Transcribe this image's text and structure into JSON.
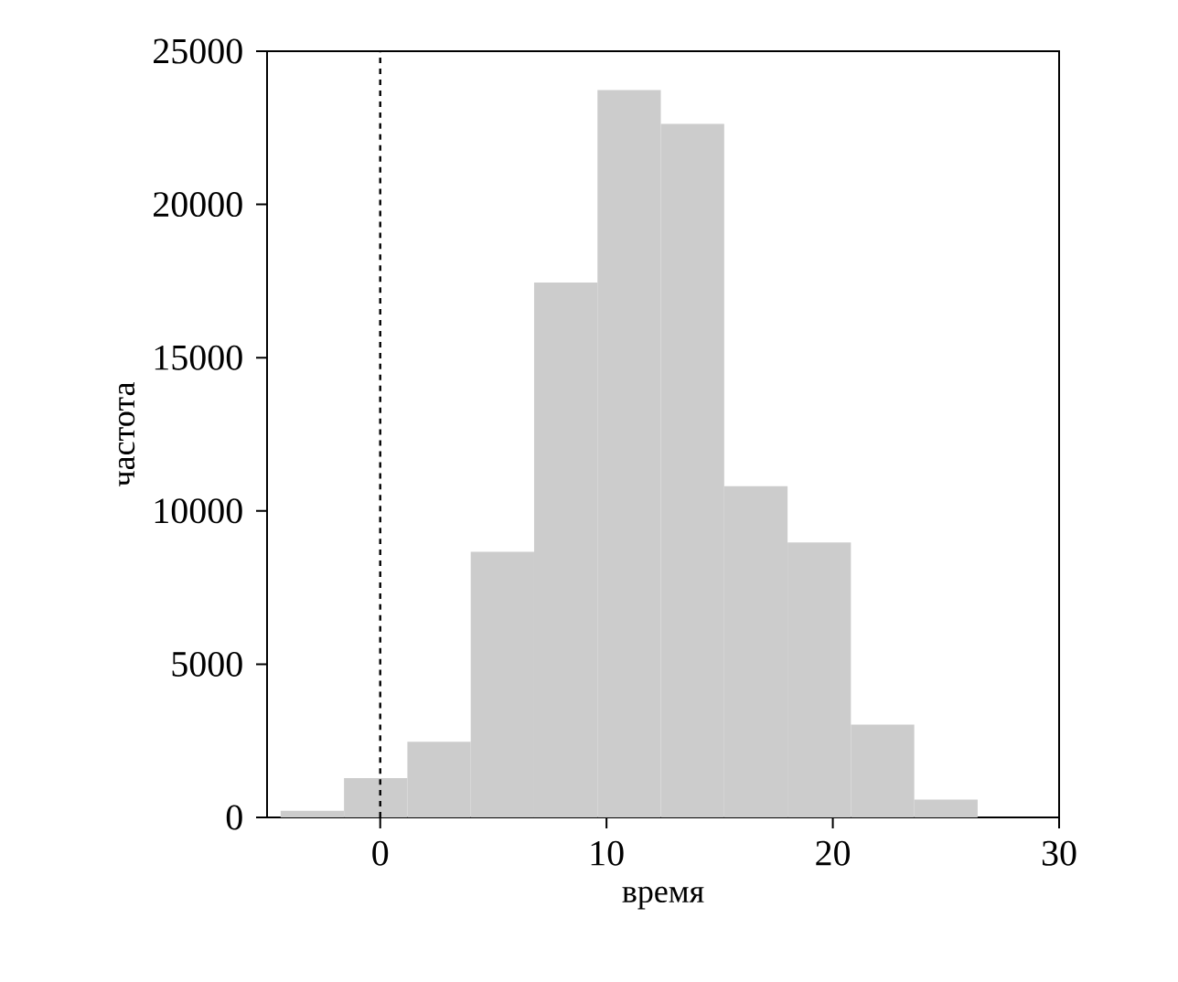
{
  "chart_data": {
    "type": "histogram",
    "xlabel": "время",
    "ylabel": "частота",
    "bins": [
      -4.4,
      -1.6,
      1.2,
      4.0,
      6.8,
      9.6,
      12.4,
      15.2,
      18.0,
      20.8,
      23.6,
      26.4,
      29.2
    ],
    "values": [
      220,
      1280,
      2470,
      8670,
      17450,
      23730,
      22630,
      10810,
      8970,
      3030,
      580,
      null
    ],
    "color": "#cccccc",
    "xlim": [
      -5,
      30
    ],
    "xticks": [
      0,
      10,
      20,
      30
    ],
    "ylim": [
      0,
      25000
    ],
    "yticks": [
      0,
      5000,
      10000,
      15000,
      20000,
      25000
    ],
    "grid": false,
    "ref_lines": [
      {
        "axis": "x",
        "value": 0,
        "color": "#000000",
        "line_style": "dashed"
      }
    ]
  }
}
